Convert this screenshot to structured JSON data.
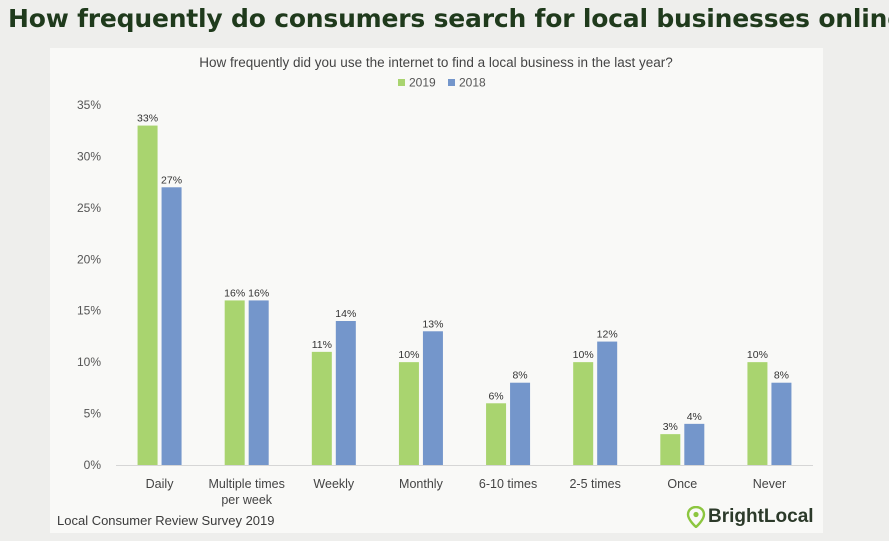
{
  "page": {
    "headline": "How frequently do consumers search for local businesses online?",
    "source": "Local Consumer Review Survey 2019",
    "brand": "BrightLocal"
  },
  "colors": {
    "series_2019": "#a9d46f",
    "series_2018": "#7496cb",
    "brand_pin": "#8cc63f"
  },
  "chart_data": {
    "type": "bar",
    "title": "How frequently did you use the internet to find a local business in the last year?",
    "categories": [
      "Daily",
      "Multiple times per week",
      "Weekly",
      "Monthly",
      "6-10 times",
      "2-5 times",
      "Once",
      "Never"
    ],
    "category_lines": [
      [
        "Daily"
      ],
      [
        "Multiple times",
        "per week"
      ],
      [
        "Weekly"
      ],
      [
        "Monthly"
      ],
      [
        "6-10 times"
      ],
      [
        "2-5 times"
      ],
      [
        "Once"
      ],
      [
        "Never"
      ]
    ],
    "series": [
      {
        "name": "2019",
        "values": [
          33,
          16,
          11,
          10,
          6,
          10,
          3,
          10
        ],
        "labels": [
          "33%",
          "16%",
          "11%",
          "10%",
          "6%",
          "10%",
          "3%",
          "10%"
        ]
      },
      {
        "name": "2018",
        "values": [
          27,
          16,
          14,
          13,
          8,
          12,
          4,
          8
        ],
        "labels": [
          "27%",
          "16%",
          "14%",
          "13%",
          "8%",
          "12%",
          "4%",
          "8%"
        ]
      }
    ],
    "ylim": [
      0,
      35
    ],
    "yticks": [
      0,
      5,
      10,
      15,
      20,
      25,
      30,
      35
    ],
    "ytick_labels": [
      "0%",
      "5%",
      "10%",
      "15%",
      "20%",
      "25%",
      "30%",
      "35%"
    ],
    "legend": "top-center",
    "grid": false
  }
}
